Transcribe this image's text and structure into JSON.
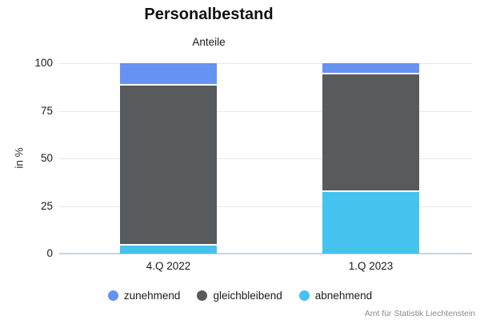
{
  "title": "Personalbestand",
  "subtitle": "Anteile",
  "source": "Amt für Statistik Liechtenstein",
  "colors": {
    "zunehmend": "#6692f3",
    "gleichbleibend": "#595a5c",
    "abnehmend": "#45c3ee",
    "gridline": "#e8e8e8",
    "baseline": "#c9d2da",
    "text": "#1a1a1a",
    "source_text": "#8a8a8a"
  },
  "chart_data": {
    "type": "bar",
    "stacked": true,
    "title": "Personalbestand",
    "subtitle": "Anteile",
    "categories": [
      "4.Q 2022",
      "1.Q 2023"
    ],
    "series": [
      {
        "name": "zunehmend",
        "color": "#6692f3",
        "values": [
          11,
          5
        ]
      },
      {
        "name": "gleichbleibend",
        "color": "#595a5c",
        "values": [
          84,
          62
        ]
      },
      {
        "name": "abnehmend",
        "color": "#45c3ee",
        "values": [
          5,
          33
        ]
      }
    ],
    "xlabel": "",
    "ylabel": "in %",
    "ylim": [
      0,
      100
    ],
    "yticks": [
      0,
      25,
      50,
      75,
      100
    ],
    "grid": true,
    "legend_position": "bottom"
  }
}
